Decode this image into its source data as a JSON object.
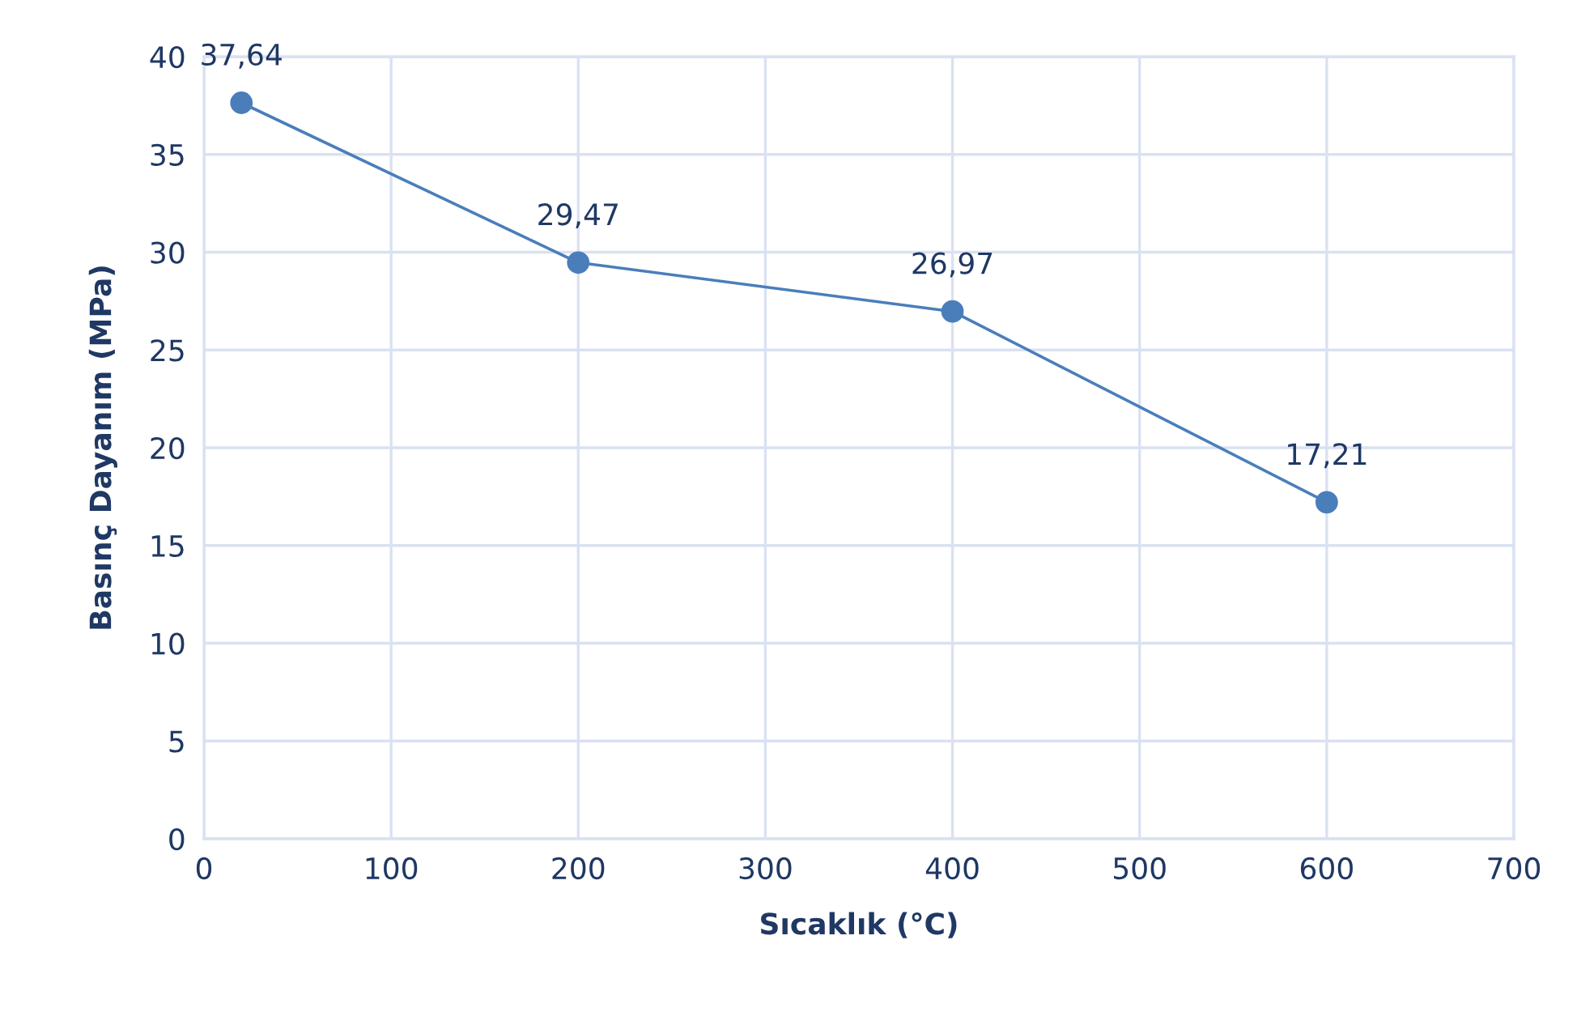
{
  "chart_data": {
    "type": "line",
    "xlabel": "Sıcaklık (°C)",
    "ylabel": "Basınç Dayanım (MPa)",
    "x": [
      20,
      200,
      400,
      600
    ],
    "series": [
      {
        "color": "#4a7ebb",
        "values": [
          37.64,
          29.47,
          26.97,
          17.21
        ],
        "value_labels": [
          "37,64",
          "29,47",
          "26,97",
          "17,21"
        ]
      }
    ],
    "xlim": [
      0,
      700
    ],
    "xticks": [
      0,
      100,
      200,
      300,
      400,
      500,
      600,
      700
    ],
    "ylim": [
      0,
      40
    ],
    "yticks": [
      0,
      5,
      10,
      15,
      20,
      25,
      30,
      35,
      40
    ],
    "grid": true,
    "marker": "circle",
    "line_style": "solid"
  }
}
